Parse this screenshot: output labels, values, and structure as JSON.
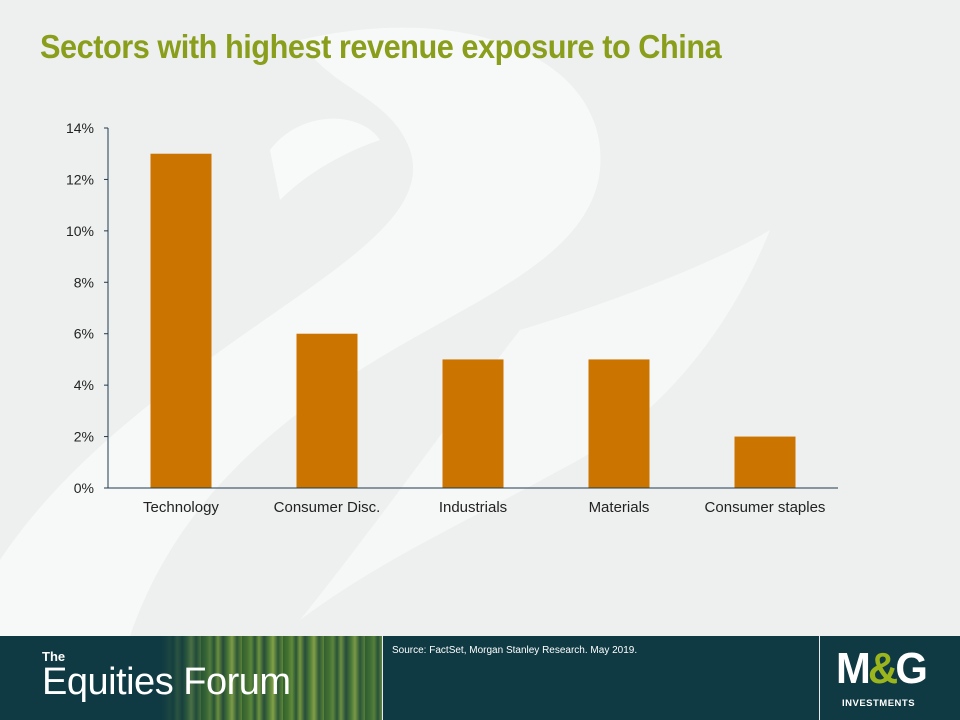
{
  "colors": {
    "title": "#8a9e1c",
    "bar": "#cc7400",
    "axis": "#1d3a4e",
    "footer": "#0f3a43",
    "logo_accent": "#9bb51d"
  },
  "slide": {
    "title": "Sectors with highest revenue exposure to China"
  },
  "chart_data": {
    "type": "bar",
    "title": "",
    "xlabel": "",
    "ylabel": "",
    "categories": [
      "Technology",
      "Consumer Disc.",
      "Industrials",
      "Materials",
      "Consumer staples"
    ],
    "values": [
      13,
      6,
      5,
      5,
      2
    ],
    "value_unit": "%",
    "ylim": [
      0,
      14
    ],
    "yticks": [
      0,
      2,
      4,
      6,
      8,
      10,
      12,
      14
    ],
    "ytick_labels": [
      "0%",
      "2%",
      "4%",
      "6%",
      "8%",
      "10%",
      "12%",
      "14%"
    ],
    "grid": false,
    "legend": "none"
  },
  "footer": {
    "brand_prefix": "The",
    "brand_name": "Equities Forum",
    "source": "Source: FactSet, Morgan Stanley Research. May 2019.",
    "logo": {
      "m": "M",
      "amp": "&",
      "g": "G",
      "subtitle": "INVESTMENTS"
    }
  }
}
